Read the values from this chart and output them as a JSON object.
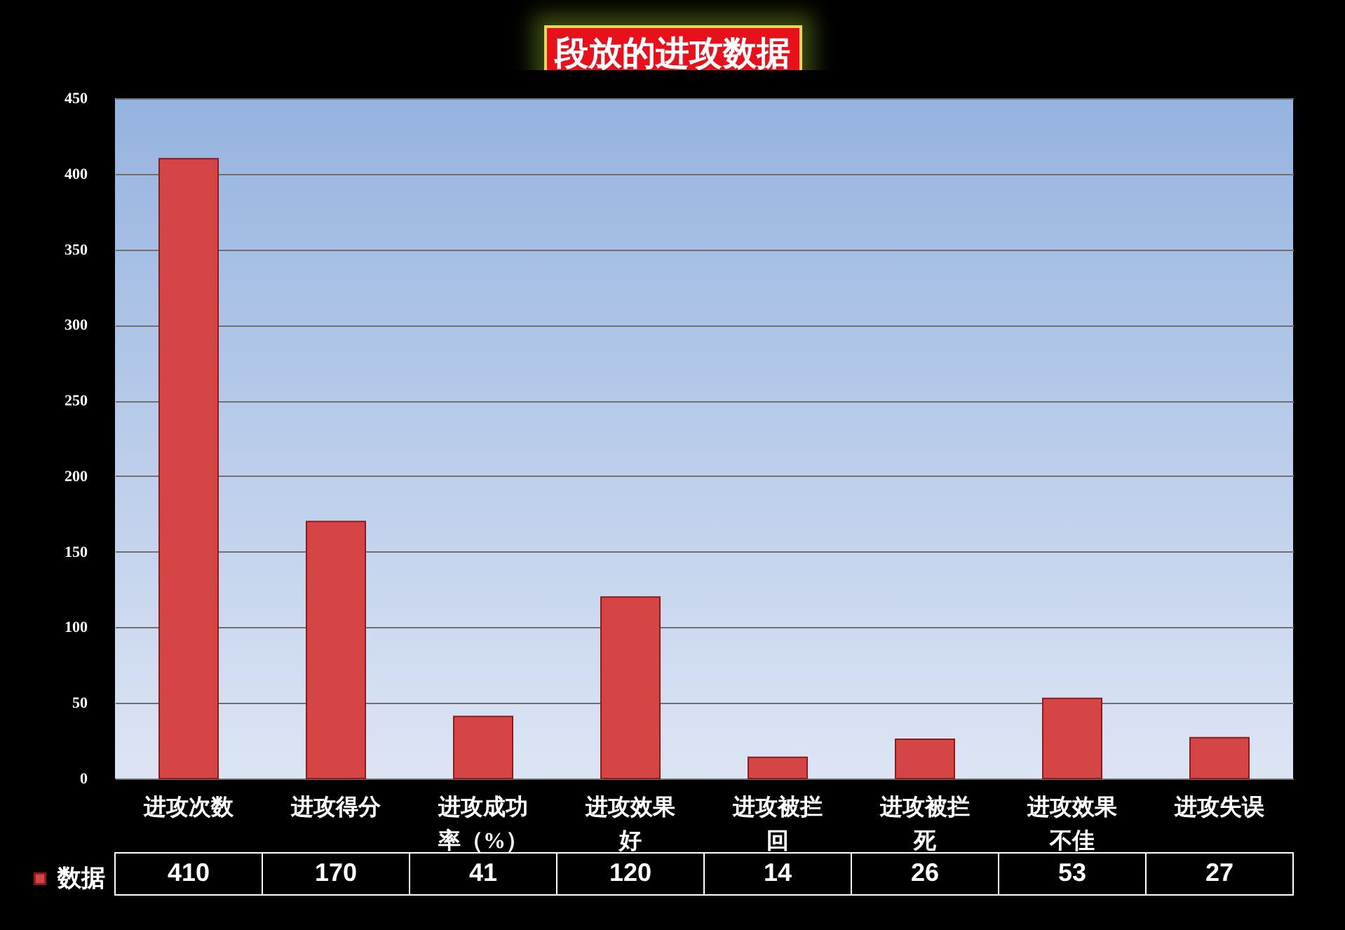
{
  "chart_data": {
    "type": "bar",
    "title": "段放的进攻数据",
    "categories": [
      "进攻次数",
      "进攻得分",
      "进攻成功率（%）",
      "进攻效果好",
      "进攻被拦回",
      "进攻被拦死",
      "进攻效果不佳",
      "进攻失误"
    ],
    "series": [
      {
        "name": "数据",
        "color": "#d64545",
        "values": [
          410,
          170,
          41,
          120,
          14,
          26,
          53,
          27
        ]
      }
    ],
    "ylim": [
      0,
      450
    ],
    "yticks": [
      0,
      50,
      100,
      150,
      200,
      250,
      300,
      350,
      400,
      450
    ],
    "grid": "y",
    "data_labels": true,
    "legend": "bottom left"
  }
}
